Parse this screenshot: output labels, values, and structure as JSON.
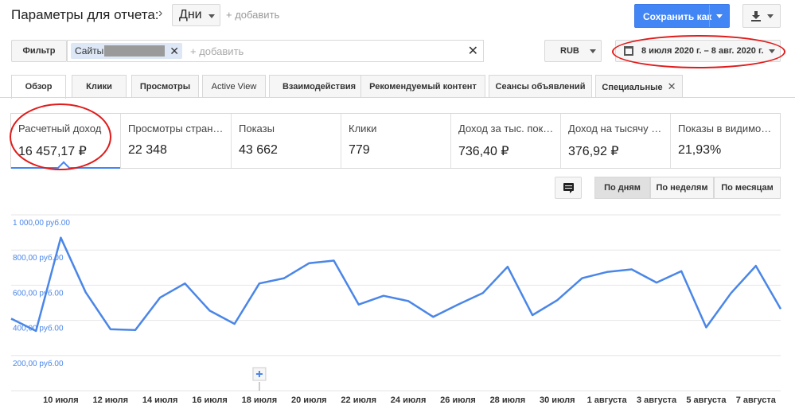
{
  "header": {
    "report_title": "Параметры для отчета:",
    "period_value": "Дни",
    "add_dimension": "+ добавить",
    "save_label": "Сохранить как"
  },
  "filter": {
    "button_label": "Фильтр",
    "chip_label": "Сайты",
    "add_label": "+ добавить"
  },
  "currency": "RUB",
  "date_range": "8 июля 2020 г. – 8 авг. 2020 г.",
  "tabs": [
    {
      "label": "Обзор"
    },
    {
      "label": "Клики"
    },
    {
      "label": "Просмотры"
    },
    {
      "label": "Active View"
    },
    {
      "label": "Взаимодействия"
    },
    {
      "label": "Рекомендуемый контент"
    },
    {
      "label": "Сеансы объявлений"
    },
    {
      "label": "Специальные"
    }
  ],
  "metrics": [
    {
      "label": "Расчетный доход",
      "value": "16 457,17 ₽"
    },
    {
      "label": "Просмотры стран…",
      "value": "22 348"
    },
    {
      "label": "Показы",
      "value": "43 662"
    },
    {
      "label": "Клики",
      "value": "779"
    },
    {
      "label": "Доход за тыс. пок…",
      "value": "736,40 ₽"
    },
    {
      "label": "Доход на тысячу …",
      "value": "376,92 ₽"
    },
    {
      "label": "Показы в видимо…",
      "value": "21,93%"
    }
  ],
  "granularity": {
    "by_day": "По дням",
    "by_week": "По неделям",
    "by_month": "По месяцам"
  },
  "colors": {
    "accent": "#4285f4",
    "highlight": "#e01b1b",
    "line": "#4a86e8"
  },
  "chart_data": {
    "type": "line",
    "y_tick_labels": [
      "1 000,00 руб.00",
      "800,00 руб.00",
      "600,00 руб.00",
      "400,00 руб.00",
      "200,00 руб.00"
    ],
    "y_ticks": [
      1000,
      800,
      600,
      400,
      200
    ],
    "ylim": [
      0,
      1000
    ],
    "x_tick_labels": [
      "10 июля",
      "12 июля",
      "14 июля",
      "16 июля",
      "18 июля",
      "20 июля",
      "22 июля",
      "24 июля",
      "26 июля",
      "28 июля",
      "30 июля",
      "1 августа",
      "3 августа",
      "5 августа",
      "7 августа"
    ],
    "x": [
      "8 июля",
      "9 июля",
      "10 июля",
      "11 июля",
      "12 июля",
      "13 июля",
      "14 июля",
      "15 июля",
      "16 июля",
      "17 июля",
      "18 июля",
      "19 июля",
      "20 июля",
      "21 июля",
      "22 июля",
      "23 июля",
      "24 июля",
      "25 июля",
      "26 июля",
      "27 июля",
      "28 июля",
      "29 июля",
      "30 июля",
      "31 июля",
      "1 августа",
      "2 августа",
      "3 августа",
      "4 августа",
      "5 августа",
      "6 августа",
      "7 августа",
      "8 августа"
    ],
    "series": [
      {
        "values": [
          410,
          340,
          870,
          560,
          350,
          345,
          530,
          610,
          455,
          380,
          610,
          640,
          725,
          740,
          490,
          540,
          510,
          420,
          490,
          555,
          705,
          430,
          515,
          640,
          675,
          690,
          615,
          680,
          360,
          555,
          710,
          465
        ]
      }
    ],
    "grid": true
  }
}
